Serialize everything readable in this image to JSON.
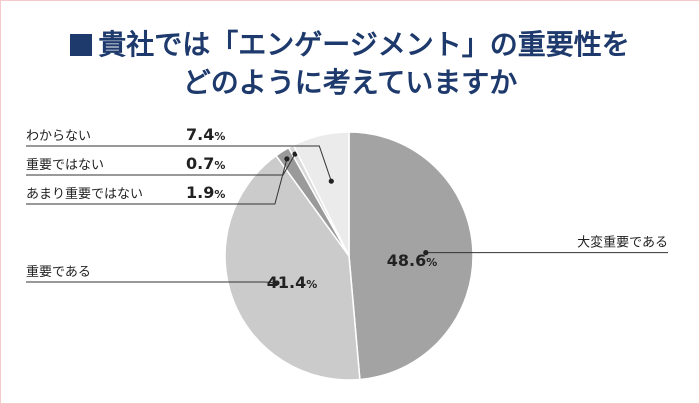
{
  "title_line1": "貴社では「エンゲージメント」の重要性を",
  "title_line2": "どのように考えていますか",
  "chart_data": {
    "type": "pie",
    "title": "貴社では「エンゲージメント」の重要性をどのように考えていますか",
    "unit": "%",
    "slices": [
      {
        "label": "大変重要である",
        "value": 48.6,
        "color": "#a3a3a3"
      },
      {
        "label": "重要である",
        "value": 41.4,
        "color": "#cbcbcb"
      },
      {
        "label": "あまり重要ではない",
        "value": 1.9,
        "color": "#9a9a9a"
      },
      {
        "label": "重要ではない",
        "value": 0.7,
        "color": "#d9d9d9"
      },
      {
        "label": "わからない",
        "value": 7.4,
        "color": "#ebebeb"
      }
    ]
  }
}
